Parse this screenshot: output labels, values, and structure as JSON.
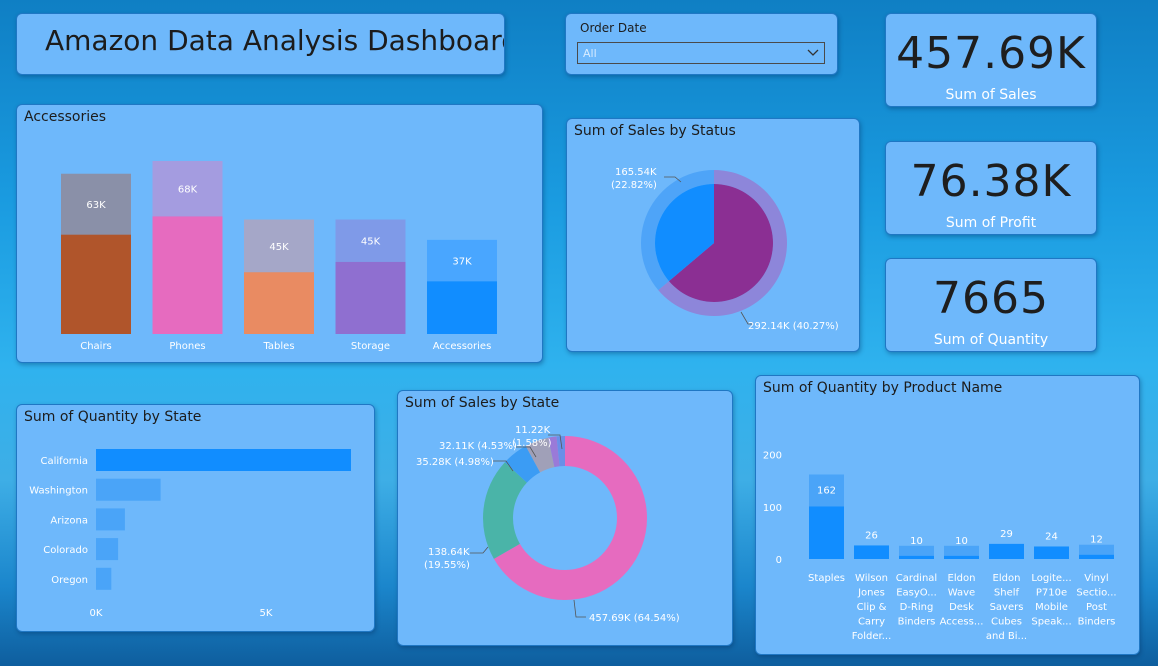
{
  "dashboard": {
    "title": "Amazon Data Analysis Dashboard"
  },
  "slicer": {
    "label": "Order Date",
    "value": "All"
  },
  "kpis": {
    "sales": {
      "value": "457.69K",
      "label": "Sum of Sales"
    },
    "profit": {
      "value": "76.38K",
      "label": "Sum of Profit"
    },
    "quantity": {
      "value": "7665",
      "label": "Sum of Quantity"
    }
  },
  "titles": {
    "accessories": "Accessories",
    "status": "Sum of Sales by Status",
    "state_qty": "Sum of Quantity by State",
    "state_sales": "Sum of Sales by State",
    "product": "Sum of Quantity by Product Name"
  },
  "colors": {
    "card_bg": "#6eb8fb",
    "accent_blue": "#118dff",
    "pink": "#e66bbf",
    "teal": "#4ab4a8",
    "purple": "#8b2f93"
  },
  "chart_data": [
    {
      "id": "accessories",
      "type": "bar",
      "title": "Accessories",
      "categories": [
        "Chairs",
        "Phones",
        "Tables",
        "Storage",
        "Accessories"
      ],
      "values": [
        63,
        68,
        45,
        45,
        37
      ],
      "labels": [
        "63K",
        "68K",
        "45K",
        "45K",
        "37K"
      ],
      "ylim": [
        0,
        68
      ],
      "inner_fraction": [
        0.62,
        0.68,
        0.54,
        0.63,
        0.56
      ],
      "top_colors": [
        "#8a90a8",
        "#a49ce0",
        "#a5a7c8",
        "#7f9ae8",
        "#49a6ff"
      ],
      "bottom_colors": [
        "#b0552b",
        "#e66bbf",
        "#e98b62",
        "#8f6fd0",
        "#118dff"
      ]
    },
    {
      "id": "status",
      "type": "pie",
      "title": "Sum of Sales by Status",
      "slices": [
        {
          "value": 292.14,
          "label": "292.14K (40.27%)",
          "color": "#8b2f93"
        },
        {
          "value": 165.54,
          "label": "165.54K (22.82%)",
          "color": "#118dff"
        }
      ]
    },
    {
      "id": "state_qty",
      "type": "bar",
      "title": "Sum of Quantity by State",
      "categories": [
        "California",
        "Washington",
        "Arizona",
        "Colorado",
        "Oregon"
      ],
      "values": [
        7500,
        1900,
        850,
        650,
        450
      ],
      "xticks": [
        "0K",
        "5K"
      ],
      "xlim": [
        0,
        7500
      ]
    },
    {
      "id": "state_sales",
      "type": "pie",
      "title": "Sum of Sales by State",
      "slices": [
        {
          "value": 457.69,
          "label": "457.69K (64.54%)",
          "color": "#e66bbf"
        },
        {
          "value": 138.64,
          "label": "138.64K (19.55%)",
          "color": "#4ab4a8"
        },
        {
          "value": 35.28,
          "label": "35.28K (4.98%)",
          "color": "#3b9cf4"
        },
        {
          "value": 32.11,
          "label": "32.11K (4.53%)",
          "color": "#a0a0b8"
        },
        {
          "value": 11.22,
          "label": "11.22K (1.58%)",
          "color": "#9a7ad8"
        },
        {
          "value": 11.22,
          "label": "",
          "color": "#6a8fe8"
        }
      ]
    },
    {
      "id": "product",
      "type": "bar",
      "title": "Sum of Quantity by Product Name",
      "categories": [
        "Staples",
        "Wilson Jones Clip & Carry Folder...",
        "Cardinal EasyO... D-Ring Binders",
        "Eldon Wave Desk Access...",
        "Eldon Shelf Savers Cubes and Bi...",
        "Logite... P710e Mobile Speak...",
        "Vinyl Sectio... Post Binders"
      ],
      "category_lines": [
        [
          "Staples"
        ],
        [
          "Wilson",
          "Jones",
          "Clip &",
          "Carry",
          "Folder..."
        ],
        [
          "Cardinal",
          "EasyO...",
          "D-Ring",
          "Binders"
        ],
        [
          "Eldon",
          "Wave",
          "Desk",
          "Access..."
        ],
        [
          "Eldon",
          "Shelf",
          "Savers",
          "Cubes",
          "and Bi..."
        ],
        [
          "Logite...",
          "P710e",
          "Mobile",
          "Speak..."
        ],
        [
          "Vinyl",
          "Sectio...",
          "Post",
          "Binders"
        ]
      ],
      "values": [
        162,
        26,
        10,
        10,
        29,
        24,
        12
      ],
      "yticks": [
        0,
        100,
        200
      ],
      "ylim": [
        0,
        230
      ]
    }
  ]
}
